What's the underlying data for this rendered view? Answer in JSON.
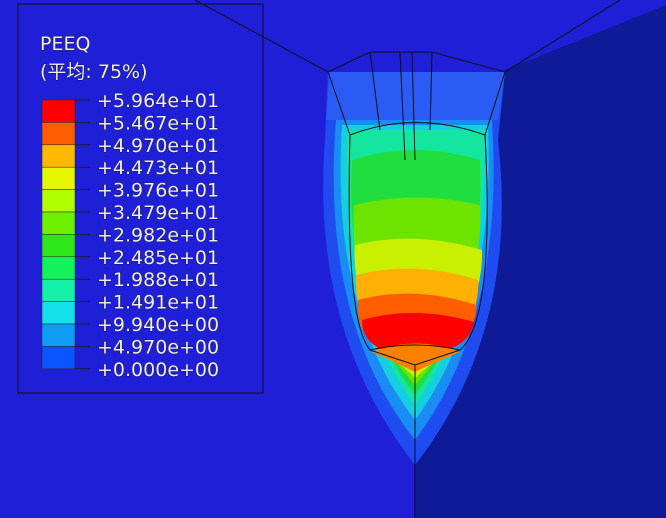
{
  "legend": {
    "title": "PEEQ",
    "subtitle": "(平均: 75%)",
    "labels": [
      "+5.964e+01",
      "+5.467e+01",
      "+4.970e+01",
      "+4.473e+01",
      "+3.976e+01",
      "+3.479e+01",
      "+2.982e+01",
      "+2.485e+01",
      "+1.988e+01",
      "+1.491e+01",
      "+9.940e+00",
      "+4.970e+00",
      "+0.000e+00"
    ],
    "colors": [
      "#ff0000",
      "#ff5e00",
      "#ffb800",
      "#e6f500",
      "#b2ff00",
      "#6cf000",
      "#2ee61a",
      "#14f25a",
      "#14f0a8",
      "#14e0e8",
      "#0e9cf5",
      "#0a55ff"
    ]
  }
}
